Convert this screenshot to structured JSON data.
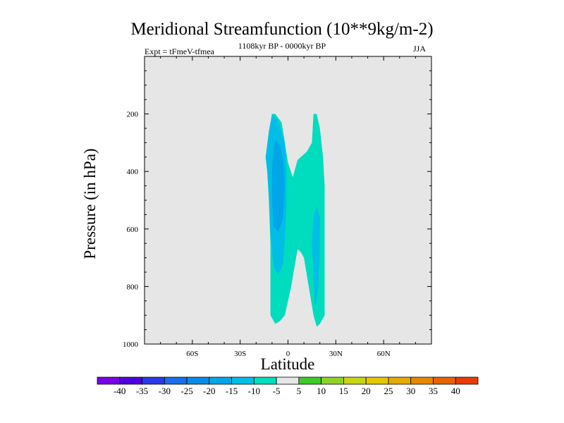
{
  "chart_data": {
    "type": "contour",
    "title": "Meridional Streamfunction (10**9kg/m-2)",
    "subtitle": "1108kyr BP - 0000kyr BP",
    "left_label": "Expt = tFmeV-tfmea",
    "right_label": "JJA",
    "xlabel": "Latitude",
    "ylabel": "Pressure (in hPa)",
    "xlim": [
      -90,
      90
    ],
    "ylim": [
      1000,
      0
    ],
    "x_ticks": [
      {
        "value": -60,
        "label": "60S"
      },
      {
        "value": -30,
        "label": "30S"
      },
      {
        "value": 0,
        "label": "0"
      },
      {
        "value": 30,
        "label": "30N"
      },
      {
        "value": 60,
        "label": "60N"
      }
    ],
    "y_ticks": [
      {
        "value": 200,
        "label": "200"
      },
      {
        "value": 400,
        "label": "400"
      },
      {
        "value": 600,
        "label": "600"
      },
      {
        "value": 800,
        "label": "800"
      },
      {
        "value": 1000,
        "label": "1000"
      }
    ],
    "background_color": "#e6e6e6",
    "regions": [
      {
        "level": "-10 to -5",
        "color": "#00dcbe",
        "points": [
          [
            -10,
            200
          ],
          [
            -8,
            200
          ],
          [
            -4,
            230
          ],
          [
            -2,
            300
          ],
          [
            0,
            370
          ],
          [
            3,
            420
          ],
          [
            6,
            360
          ],
          [
            12,
            330
          ],
          [
            15,
            300
          ],
          [
            16,
            200
          ],
          [
            18,
            200
          ],
          [
            20,
            250
          ],
          [
            22,
            350
          ],
          [
            23,
            450
          ],
          [
            23,
            700
          ],
          [
            23,
            900
          ],
          [
            20,
            930
          ],
          [
            18,
            940
          ],
          [
            16,
            900
          ],
          [
            13,
            800
          ],
          [
            10,
            700
          ],
          [
            8,
            680
          ],
          [
            6,
            670
          ],
          [
            2,
            800
          ],
          [
            -2,
            900
          ],
          [
            -5,
            920
          ],
          [
            -8,
            930
          ],
          [
            -11,
            900
          ],
          [
            -11,
            800
          ],
          [
            -11,
            650
          ],
          [
            -12,
            500
          ],
          [
            -13,
            400
          ],
          [
            -14,
            350
          ],
          [
            -11,
            240
          ]
        ]
      },
      {
        "level": "-15 to -10",
        "color": "#00bee6",
        "points": [
          [
            -10,
            200
          ],
          [
            -7,
            220
          ],
          [
            -4,
            260
          ],
          [
            -2,
            300
          ],
          [
            -1,
            400
          ],
          [
            -1,
            520
          ],
          [
            -2,
            640
          ],
          [
            -3,
            720
          ],
          [
            -6,
            760
          ],
          [
            -9,
            730
          ],
          [
            -11,
            620
          ],
          [
            -12,
            480
          ],
          [
            -13,
            400
          ],
          [
            -14,
            350
          ],
          [
            -12,
            260
          ]
        ]
      },
      {
        "level": "-20 to -15",
        "color": "#00a6e8",
        "points": [
          [
            -8,
            290
          ],
          [
            -5,
            310
          ],
          [
            -3,
            360
          ],
          [
            -2,
            450
          ],
          [
            -3,
            560
          ],
          [
            -6,
            610
          ],
          [
            -9,
            590
          ],
          [
            -10,
            500
          ],
          [
            -10,
            400
          ],
          [
            -9,
            320
          ]
        ]
      },
      {
        "level": "-15 to -10",
        "color": "#00bee6",
        "points": [
          [
            16,
            560
          ],
          [
            18,
            520
          ],
          [
            20,
            560
          ],
          [
            20,
            680
          ],
          [
            19,
            800
          ],
          [
            17,
            880
          ],
          [
            16,
            760
          ],
          [
            15,
            640
          ]
        ]
      }
    ],
    "colorbar": {
      "levels": [
        -40,
        -35,
        -30,
        -25,
        -20,
        -15,
        -10,
        -5,
        5,
        10,
        15,
        20,
        25,
        30,
        35,
        40
      ],
      "colors": [
        "#7a00e6",
        "#5000dc",
        "#2a3ae6",
        "#1a6ee6",
        "#0a8ce6",
        "#00a6e8",
        "#00bee6",
        "#00dcbe",
        "#e6e6e6",
        "#3ccc28",
        "#8ed228",
        "#c8d614",
        "#e6c800",
        "#e6aa00",
        "#e68800",
        "#e66400",
        "#e63c00"
      ]
    }
  }
}
